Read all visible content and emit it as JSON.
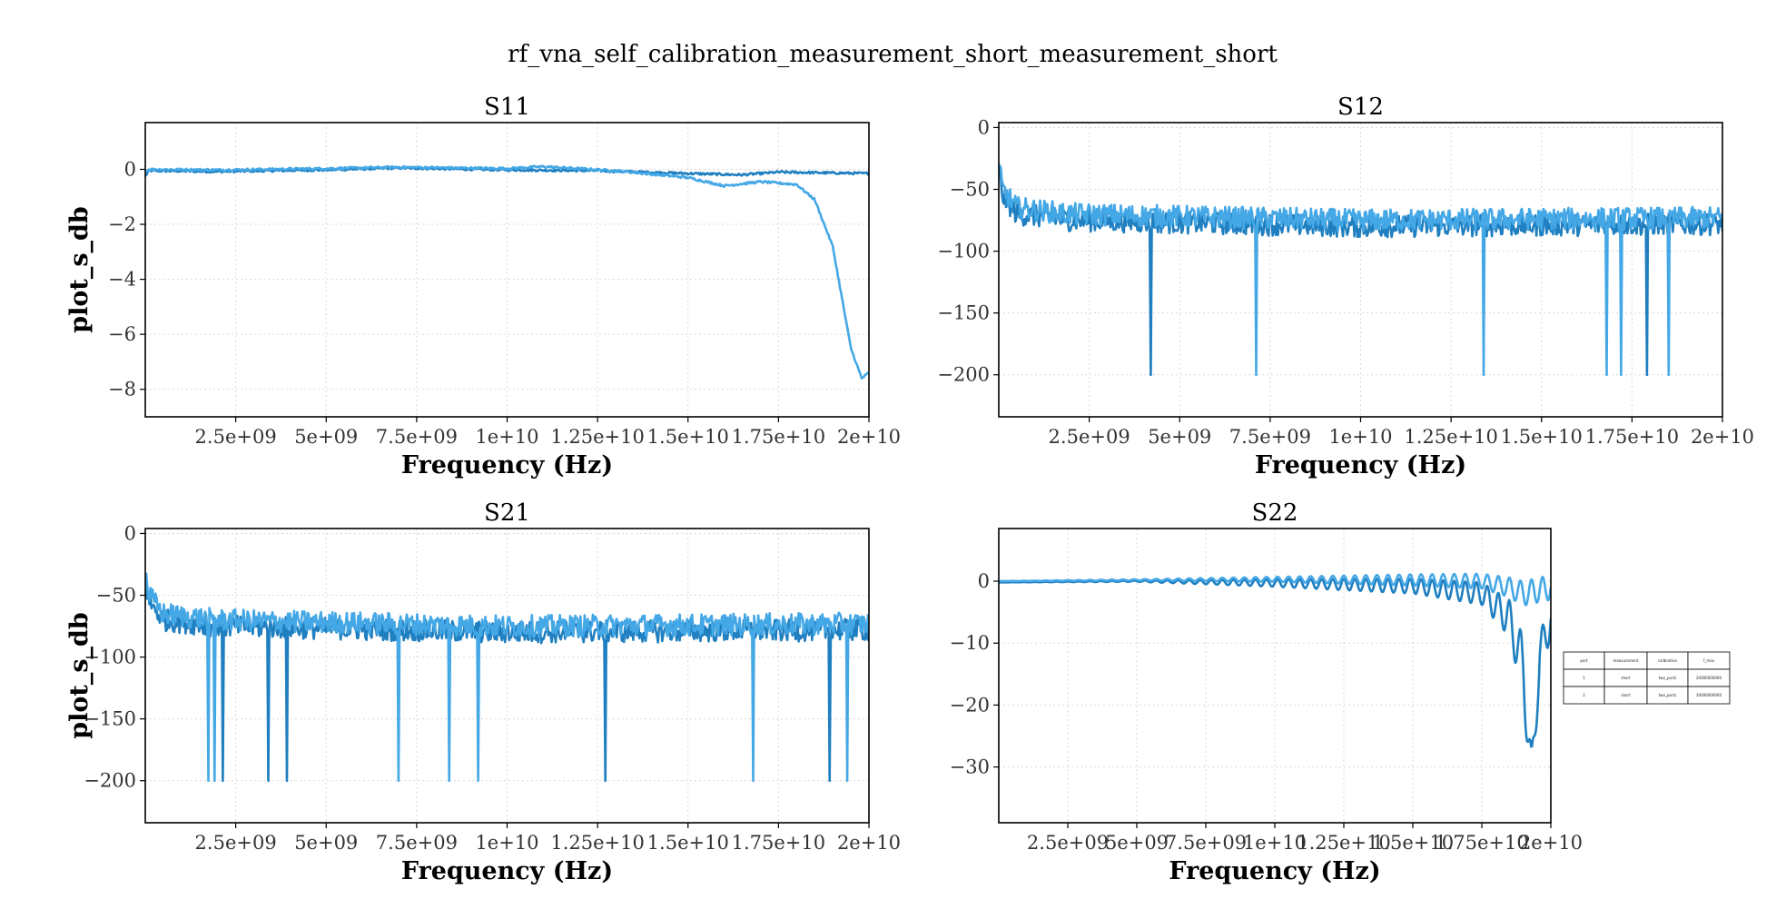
{
  "figure": {
    "title": "rf_vna_self_calibration_measurement_short_measurement_short"
  },
  "colors": {
    "series_1": "#1f7fc0",
    "series_2": "#45a8e6",
    "grid": "#d9d9d9"
  },
  "chart_data": [
    {
      "type": "line",
      "title": "S11",
      "xlabel": "Frequency (Hz)",
      "ylabel": "plot_s_db",
      "xlim": [
        0,
        20000000000
      ],
      "ylim": [
        -9,
        1.7
      ],
      "xticks": [
        2500000000,
        5000000000,
        7500000000,
        10000000000,
        12500000000,
        15000000000,
        17500000000,
        20000000000
      ],
      "xtick_labels": [
        "2.5e+09",
        "5e+09",
        "7.5e+09",
        "1e+10",
        "1.25e+10",
        "1.5e+10",
        "1.75e+10",
        "2e+10"
      ],
      "yticks": [
        0,
        -2,
        -4,
        -6,
        -8
      ],
      "ytick_labels": [
        "0",
        "−2",
        "−4",
        "−6",
        "−8"
      ],
      "grid": true,
      "series": [
        {
          "color": "series_1",
          "x": [
            0,
            100000000,
            2000000000,
            5000000000,
            7000000000,
            10000000000,
            12500000000,
            15000000000,
            16500000000,
            17500000000,
            20000000000
          ],
          "y": [
            -0.25,
            -0.05,
            -0.08,
            -0.02,
            0.05,
            -0.02,
            -0.05,
            -0.15,
            -0.2,
            -0.1,
            -0.15
          ],
          "noise": 0.04
        },
        {
          "color": "series_2",
          "x": [
            0,
            100000000,
            2000000000,
            5000000000,
            7000000000,
            10000000000,
            11000000000,
            13000000000,
            15000000000,
            16000000000,
            17000000000,
            18000000000,
            18500000000,
            19000000000,
            19500000000,
            19800000000,
            20000000000
          ],
          "y": [
            -0.1,
            0.0,
            -0.02,
            0.03,
            0.08,
            0.03,
            0.1,
            -0.05,
            -0.3,
            -0.6,
            -0.45,
            -0.55,
            -1.1,
            -2.8,
            -6.5,
            -7.6,
            -7.4
          ],
          "noise": 0.04
        }
      ]
    },
    {
      "type": "line",
      "title": "S12",
      "xlabel": "Frequency (Hz)",
      "ylabel": "",
      "xlim": [
        0,
        20000000000
      ],
      "ylim": [
        -234,
        4
      ],
      "xticks": [
        2500000000,
        5000000000,
        7500000000,
        10000000000,
        12500000000,
        15000000000,
        17500000000,
        20000000000
      ],
      "xtick_labels": [
        "2.5e+09",
        "5e+09",
        "7.5e+09",
        "1e+10",
        "1.25e+10",
        "1.5e+10",
        "1.75e+10",
        "2e+10"
      ],
      "yticks": [
        0,
        -50,
        -100,
        -150,
        -200
      ],
      "ytick_labels": [
        "0",
        "−50",
        "−100",
        "−150",
        "−200"
      ],
      "grid": true,
      "series": [
        {
          "color": "series_1",
          "x": [
            0,
            100000000,
            500000000,
            2000000000,
            10000000000,
            20000000000
          ],
          "y": [
            -35,
            -55,
            -70,
            -75,
            -80,
            -78
          ],
          "noise": 9,
          "spikes_x": [
            4200000000,
            17900000000
          ],
          "spike_y": -200
        },
        {
          "color": "series_2",
          "x": [
            0,
            100000000,
            500000000,
            2000000000,
            10000000000,
            20000000000
          ],
          "y": [
            -30,
            -50,
            -65,
            -70,
            -75,
            -73
          ],
          "noise": 9,
          "spikes_x": [
            7100000000,
            13400000000,
            16800000000,
            17200000000,
            18500000000
          ],
          "spike_y": -200
        }
      ]
    },
    {
      "type": "line",
      "title": "S21",
      "xlabel": "Frequency (Hz)",
      "ylabel": "plot_s_db",
      "xlim": [
        0,
        20000000000
      ],
      "ylim": [
        -234,
        4
      ],
      "xticks": [
        2500000000,
        5000000000,
        7500000000,
        10000000000,
        12500000000,
        15000000000,
        17500000000,
        20000000000
      ],
      "xtick_labels": [
        "2.5e+09",
        "5e+09",
        "7.5e+09",
        "1e+10",
        "1.25e+10",
        "1.5e+10",
        "1.75e+10",
        "2e+10"
      ],
      "yticks": [
        0,
        -50,
        -100,
        -150,
        -200
      ],
      "ytick_labels": [
        "0",
        "−50",
        "−100",
        "−150",
        "−200"
      ],
      "grid": true,
      "series": [
        {
          "color": "series_1",
          "x": [
            0,
            100000000,
            500000000,
            2000000000,
            10000000000,
            20000000000
          ],
          "y": [
            -35,
            -55,
            -70,
            -75,
            -80,
            -78
          ],
          "noise": 9,
          "spikes_x": [
            2150000000,
            3400000000,
            3900000000,
            12700000000,
            18900000000
          ],
          "spike_y": -200
        },
        {
          "color": "series_2",
          "x": [
            0,
            100000000,
            500000000,
            2000000000,
            10000000000,
            20000000000
          ],
          "y": [
            -30,
            -50,
            -65,
            -70,
            -75,
            -73
          ],
          "noise": 9,
          "spikes_x": [
            1750000000,
            1900000000,
            7000000000,
            8400000000,
            9200000000,
            16800000000,
            19400000000
          ],
          "spike_y": -200
        }
      ]
    },
    {
      "type": "line",
      "title": "S22",
      "xlabel": "Frequency (Hz)",
      "ylabel": "",
      "xlim": [
        0,
        20000000000
      ],
      "ylim": [
        -39,
        8.5
      ],
      "xticks": [
        2500000000,
        5000000000,
        7500000000,
        10000000000,
        12500000000,
        15000000000,
        17500000000,
        20000000000
      ],
      "xtick_labels": [
        "2.5e+09",
        "5e+09",
        "7.5e+09",
        "1e+10",
        "1.25e+10",
        "1.5e+10",
        "1.75e+10",
        "2e+10"
      ],
      "yticks": [
        0,
        -10,
        -20,
        -30
      ],
      "ytick_labels": [
        "0",
        "−10",
        "−20",
        "−30"
      ],
      "grid": true,
      "series": [
        {
          "color": "series_1",
          "x": [
            0,
            5000000000,
            10000000000,
            15000000000,
            17500000000,
            18500000000,
            19000000000,
            19300000000,
            19600000000,
            20000000000
          ],
          "y": [
            -0.2,
            0.0,
            -0.3,
            -0.8,
            -2.0,
            -6.0,
            -14.0,
            -31.5,
            -12.0,
            -6.0
          ],
          "ripple": [
            0,
            0.1,
            0.6,
            1.2,
            1.8,
            3.0,
            5.0,
            4.0,
            3.5,
            3.0
          ],
          "ripple_period": 400000000
        },
        {
          "color": "series_2",
          "x": [
            0,
            5000000000,
            10000000000,
            15000000000,
            17500000000,
            18500000000,
            19000000000,
            19500000000,
            20000000000
          ],
          "y": [
            0.0,
            0.2,
            0.3,
            0.2,
            0.0,
            -1.0,
            -2.0,
            -1.5,
            -1.0
          ],
          "ripple": [
            0,
            0.1,
            0.4,
            0.9,
            1.2,
            1.6,
            2.0,
            2.0,
            2.0
          ],
          "ripple_period": 400000000
        }
      ]
    }
  ],
  "table": {
    "headers": [
      "port",
      "measurement",
      "calibration",
      "f_max"
    ],
    "rows": [
      [
        "1",
        "short",
        "two_ports",
        "20000000000"
      ],
      [
        "2",
        "short",
        "two_ports",
        "20000000000"
      ]
    ]
  }
}
